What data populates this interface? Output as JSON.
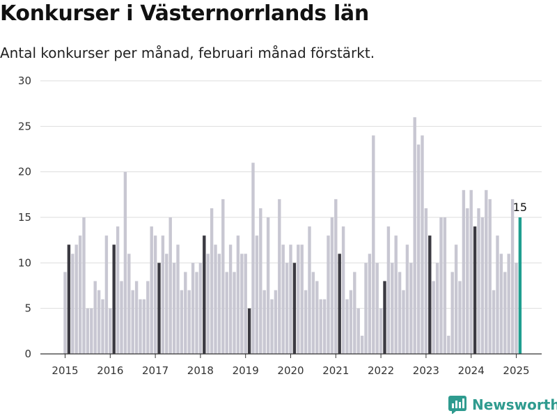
{
  "title": "Konkurser i Västernorrlands län",
  "subtitle": "Antal konkurser per månad, februari månad förstärkt.",
  "brand": {
    "name": "Newsworthy"
  },
  "colors": {
    "bar": "#c8c7d2",
    "highlight": "#3b3a42",
    "latest": "#1e9e8f",
    "grid": "#dddddd",
    "axis": "#333333"
  },
  "chart_data": {
    "type": "bar",
    "start": "2015-01",
    "ylim": [
      0,
      30
    ],
    "yticks": [
      0,
      5,
      10,
      15,
      20,
      25,
      30
    ],
    "xticks": [
      "2015",
      "2016",
      "2017",
      "2018",
      "2019",
      "2020",
      "2021",
      "2022",
      "2023",
      "2024",
      "2025"
    ],
    "highlight_month": "02",
    "grid": true,
    "values": [
      9,
      12,
      11,
      12,
      13,
      15,
      5,
      5,
      8,
      7,
      6,
      13,
      5,
      12,
      14,
      8,
      20,
      11,
      7,
      8,
      6,
      6,
      8,
      14,
      13,
      10,
      13,
      11,
      15,
      10,
      12,
      7,
      9,
      7,
      10,
      9,
      10,
      13,
      11,
      16,
      12,
      11,
      17,
      9,
      12,
      9,
      13,
      11,
      11,
      5,
      21,
      13,
      16,
      7,
      15,
      6,
      7,
      17,
      12,
      10,
      12,
      10,
      12,
      12,
      7,
      14,
      9,
      8,
      6,
      6,
      13,
      15,
      17,
      11,
      14,
      6,
      7,
      9,
      5,
      2,
      10,
      11,
      24,
      10,
      5,
      8,
      14,
      10,
      13,
      9,
      7,
      12,
      10,
      26,
      23,
      24,
      16,
      13,
      8,
      10,
      15,
      15,
      2,
      9,
      12,
      8,
      18,
      16,
      18,
      14,
      16,
      15,
      18,
      17,
      7,
      13,
      11,
      9,
      11,
      17,
      10,
      15
    ],
    "annotation": {
      "text": "15",
      "index": 121
    }
  }
}
